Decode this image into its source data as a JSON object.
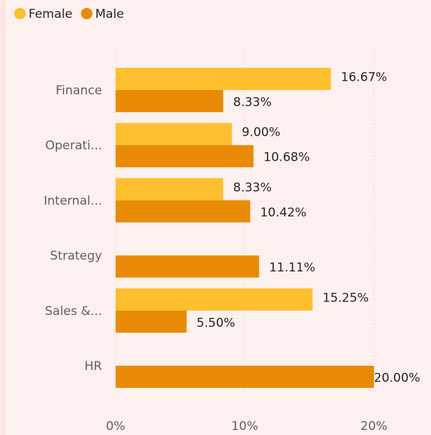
{
  "chart_data": {
    "type": "hbar",
    "categories": [
      "Finance",
      "Operati...",
      "Internal...",
      "Strategy",
      "Sales &...",
      "HR"
    ],
    "series": [
      {
        "name": "Female",
        "color": "#fdbf2d",
        "values": [
          16.67,
          9.0,
          8.33,
          null,
          15.25,
          null
        ],
        "value_labels": [
          "16.67%",
          "9.00%",
          "8.33%",
          null,
          "15.25%",
          null
        ]
      },
      {
        "name": "Male",
        "color": "#e98b06",
        "values": [
          8.33,
          10.68,
          10.42,
          11.11,
          5.5,
          20.0
        ],
        "value_labels": [
          "8.33%",
          "10.68%",
          "10.42%",
          "11.11%",
          "5.50%",
          "20.00%"
        ]
      }
    ],
    "xlim": [
      0,
      22
    ],
    "xticks": [
      {
        "value": 0,
        "label": "0%"
      },
      {
        "value": 10,
        "label": "10%"
      },
      {
        "value": 20,
        "label": "20%"
      }
    ],
    "grid": true,
    "legend": "top-left"
  }
}
